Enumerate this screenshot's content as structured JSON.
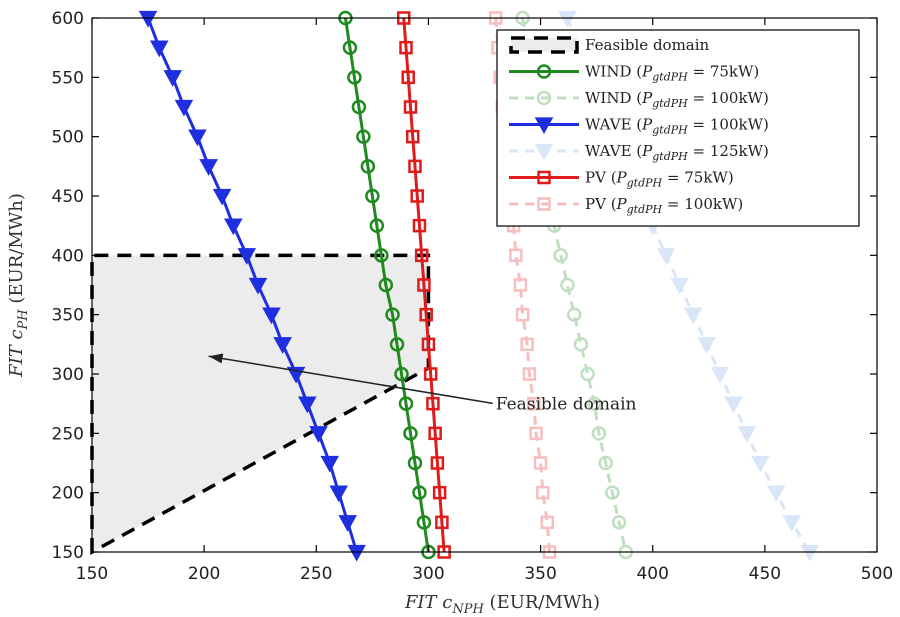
{
  "chart_data": {
    "type": "line",
    "xlabel": "FIT c_NPH (EUR/MWh)",
    "ylabel": "FIT c_PH (EUR/MWh)",
    "xlim": [
      150,
      500
    ],
    "ylim": [
      150,
      600
    ],
    "x_ticks": [
      "150",
      "200",
      "250",
      "300",
      "350",
      "400",
      "450",
      "500"
    ],
    "y_ticks": [
      "150",
      "200",
      "250",
      "300",
      "350",
      "400",
      "450",
      "500",
      "550",
      "600"
    ],
    "grid": false,
    "legend_position": "top-right",
    "series": [
      {
        "name": "WIND (P_gtdPH = 75kW)",
        "color": "#1f8a1f",
        "marker": "circle",
        "faded": false,
        "points": [
          [
            263,
            600
          ],
          [
            265,
            575
          ],
          [
            267,
            550
          ],
          [
            269,
            525
          ],
          [
            271,
            500
          ],
          [
            273,
            475
          ],
          [
            275,
            450
          ],
          [
            277,
            425
          ],
          [
            279,
            400
          ],
          [
            281,
            375
          ],
          [
            284,
            350
          ],
          [
            286,
            325
          ],
          [
            288,
            300
          ],
          [
            290,
            275
          ],
          [
            292,
            250
          ],
          [
            294,
            225
          ],
          [
            296,
            200
          ],
          [
            298,
            175
          ],
          [
            300,
            150
          ]
        ]
      },
      {
        "name": "WIND (P_gtdPH = 100kW)",
        "color": "#1f8a1f",
        "marker": "circle",
        "faded": true,
        "points": [
          [
            342,
            600
          ],
          [
            344,
            575
          ],
          [
            346,
            550
          ],
          [
            348,
            525
          ],
          [
            350,
            500
          ],
          [
            352,
            475
          ],
          [
            354,
            450
          ],
          [
            356,
            425
          ],
          [
            359,
            400
          ],
          [
            362,
            375
          ],
          [
            365,
            350
          ],
          [
            368,
            325
          ],
          [
            371,
            300
          ],
          [
            374,
            275
          ],
          [
            376,
            250
          ],
          [
            379,
            225
          ],
          [
            382,
            200
          ],
          [
            385,
            175
          ],
          [
            388,
            150
          ]
        ]
      },
      {
        "name": "WAVE (P_gtdPH = 100kW)",
        "color": "#1f2fe0",
        "marker": "triangle-down",
        "faded": false,
        "points": [
          [
            175,
            600
          ],
          [
            180,
            575
          ],
          [
            186,
            550
          ],
          [
            191,
            525
          ],
          [
            197,
            500
          ],
          [
            202,
            475
          ],
          [
            208,
            450
          ],
          [
            213,
            425
          ],
          [
            219,
            400
          ],
          [
            224,
            375
          ],
          [
            230,
            350
          ],
          [
            235,
            325
          ],
          [
            241,
            300
          ],
          [
            246,
            275
          ],
          [
            251,
            250
          ],
          [
            256,
            225
          ],
          [
            260,
            200
          ],
          [
            264,
            175
          ],
          [
            268,
            150
          ]
        ]
      },
      {
        "name": "WAVE (P_gtdPH = 125kW)",
        "color": "#7aa7e6",
        "marker": "triangle-down",
        "faded": true,
        "points": [
          [
            362,
            600
          ],
          [
            367,
            575
          ],
          [
            372,
            550
          ],
          [
            378,
            525
          ],
          [
            383,
            500
          ],
          [
            389,
            475
          ],
          [
            394,
            450
          ],
          [
            400,
            425
          ],
          [
            406,
            400
          ],
          [
            412,
            375
          ],
          [
            418,
            350
          ],
          [
            424,
            325
          ],
          [
            430,
            300
          ],
          [
            436,
            275
          ],
          [
            442,
            250
          ],
          [
            448,
            225
          ],
          [
            455,
            200
          ],
          [
            462,
            175
          ],
          [
            470,
            150
          ]
        ]
      },
      {
        "name": "PV (P_gtdPH = 75kW)",
        "color": "#e01b1b",
        "marker": "square",
        "faded": false,
        "points": [
          [
            289,
            600
          ],
          [
            290,
            575
          ],
          [
            291,
            550
          ],
          [
            292,
            525
          ],
          [
            293,
            500
          ],
          [
            294,
            475
          ],
          [
            295,
            450
          ],
          [
            296,
            425
          ],
          [
            297,
            400
          ],
          [
            298,
            375
          ],
          [
            299,
            350
          ],
          [
            300,
            325
          ],
          [
            301,
            300
          ],
          [
            302,
            275
          ],
          [
            303,
            250
          ],
          [
            304,
            225
          ],
          [
            305,
            200
          ],
          [
            306,
            175
          ],
          [
            307,
            150
          ]
        ]
      },
      {
        "name": "PV (P_gtdPH = 100kW)",
        "color": "#e01b1b",
        "marker": "square",
        "faded": true,
        "points": [
          [
            330,
            600
          ],
          [
            331,
            575
          ],
          [
            332,
            550
          ],
          [
            333,
            525
          ],
          [
            334,
            500
          ],
          [
            335,
            475
          ],
          [
            336,
            450
          ],
          [
            338,
            425
          ],
          [
            339,
            400
          ],
          [
            341,
            375
          ],
          [
            342,
            350
          ],
          [
            344,
            325
          ],
          [
            345,
            300
          ],
          [
            347,
            275
          ],
          [
            348,
            250
          ],
          [
            350,
            225
          ],
          [
            351,
            200
          ],
          [
            353,
            175
          ],
          [
            354,
            150
          ]
        ]
      }
    ],
    "feasible_domain": {
      "legend_label": "Feasible domain",
      "vertices": [
        [
          150,
          150
        ],
        [
          150,
          400
        ],
        [
          300,
          400
        ],
        [
          300,
          305
        ]
      ]
    },
    "annotation": {
      "text": "Feasible domain",
      "from": [
        330,
        282
      ],
      "to": [
        202,
        315
      ]
    },
    "legend_items": [
      {
        "main": "Feasible domain",
        "sub": "",
        "eq": ""
      },
      {
        "main": "WIND (",
        "sub": "gtdPH",
        "eq": " = 75kW)"
      },
      {
        "main": "WIND (",
        "sub": "gtdPH",
        "eq": " = 100kW)"
      },
      {
        "main": "WAVE (",
        "sub": "gtdPH",
        "eq": " = 100kW)"
      },
      {
        "main": "WAVE (",
        "sub": "gtdPH",
        "eq": " = 125kW)"
      },
      {
        "main": "PV (",
        "sub": "gtdPH",
        "eq": " = 75kW)"
      },
      {
        "main": "PV (",
        "sub": "gtdPH",
        "eq": " = 100kW)"
      }
    ]
  }
}
